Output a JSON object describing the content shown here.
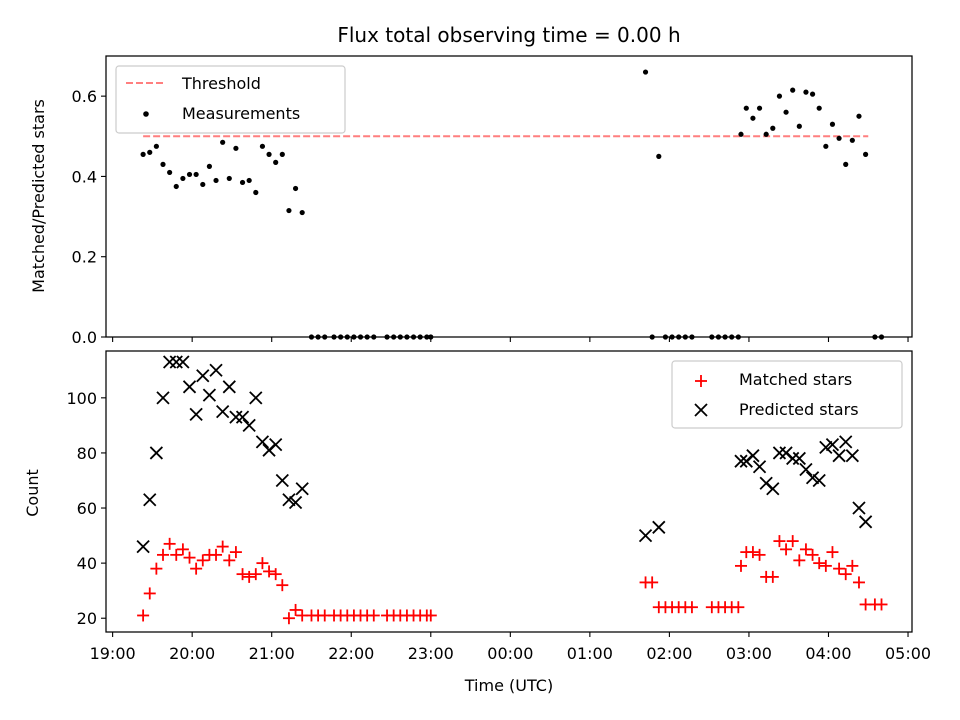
{
  "chart_data": [
    {
      "panel": "top",
      "type": "scatter",
      "title": "Flux total observing time = 0.00 h",
      "ylabel": "Matched/Predicted stars",
      "xlabel": "",
      "ylim": [
        0,
        0.7
      ],
      "yticks": [
        0.0,
        0.2,
        0.4,
        0.6
      ],
      "ytick_labels": [
        "0.0",
        "0.2",
        "0.4",
        "0.6"
      ],
      "legend_position": "top-left",
      "legend": [
        {
          "label": "Threshold",
          "style": "dashed-line",
          "color": "#ff7f7f"
        },
        {
          "label": "Measurements",
          "style": "dot",
          "color": "#000000"
        }
      ],
      "threshold": {
        "y": 0.5,
        "x_start": "19:23",
        "x_end": "04:30",
        "color": "#ff7f7f"
      },
      "series": [
        {
          "name": "Measurements",
          "color": "#000000",
          "points": [
            [
              "19:23",
              0.455
            ],
            [
              "19:28",
              0.46
            ],
            [
              "19:33",
              0.475
            ],
            [
              "19:38",
              0.43
            ],
            [
              "19:43",
              0.41
            ],
            [
              "19:48",
              0.375
            ],
            [
              "19:53",
              0.395
            ],
            [
              "19:58",
              0.405
            ],
            [
              "20:03",
              0.405
            ],
            [
              "20:08",
              0.38
            ],
            [
              "20:13",
              0.425
            ],
            [
              "20:18",
              0.39
            ],
            [
              "20:23",
              0.485
            ],
            [
              "20:28",
              0.395
            ],
            [
              "20:33",
              0.47
            ],
            [
              "20:38",
              0.385
            ],
            [
              "20:43",
              0.39
            ],
            [
              "20:48",
              0.36
            ],
            [
              "20:53",
              0.475
            ],
            [
              "20:58",
              0.455
            ],
            [
              "21:03",
              0.435
            ],
            [
              "21:08",
              0.455
            ],
            [
              "21:13",
              0.315
            ],
            [
              "21:18",
              0.37
            ],
            [
              "21:23",
              0.31
            ],
            [
              "21:30",
              0.0
            ],
            [
              "21:35",
              0.0
            ],
            [
              "21:40",
              0.0
            ],
            [
              "21:47",
              0.0
            ],
            [
              "21:52",
              0.0
            ],
            [
              "21:57",
              0.0
            ],
            [
              "22:02",
              0.0
            ],
            [
              "22:07",
              0.0
            ],
            [
              "22:12",
              0.0
            ],
            [
              "22:17",
              0.0
            ],
            [
              "22:27",
              0.0
            ],
            [
              "22:32",
              0.0
            ],
            [
              "22:37",
              0.0
            ],
            [
              "22:42",
              0.0
            ],
            [
              "22:47",
              0.0
            ],
            [
              "22:52",
              0.0
            ],
            [
              "22:57",
              0.0
            ],
            [
              "23:00",
              0.0
            ],
            [
              "01:42",
              0.66
            ],
            [
              "01:47",
              0.0
            ],
            [
              "01:52",
              0.45
            ],
            [
              "01:57",
              0.0
            ],
            [
              "02:02",
              0.0
            ],
            [
              "02:07",
              0.0
            ],
            [
              "02:12",
              0.0
            ],
            [
              "02:17",
              0.0
            ],
            [
              "02:32",
              0.0
            ],
            [
              "02:37",
              0.0
            ],
            [
              "02:42",
              0.0
            ],
            [
              "02:47",
              0.0
            ],
            [
              "02:52",
              0.0
            ],
            [
              "02:54",
              0.505
            ],
            [
              "02:58",
              0.57
            ],
            [
              "03:03",
              0.545
            ],
            [
              "03:08",
              0.57
            ],
            [
              "03:13",
              0.505
            ],
            [
              "03:18",
              0.52
            ],
            [
              "03:23",
              0.6
            ],
            [
              "03:28",
              0.56
            ],
            [
              "03:33",
              0.615
            ],
            [
              "03:38",
              0.525
            ],
            [
              "03:43",
              0.61
            ],
            [
              "03:48",
              0.605
            ],
            [
              "03:53",
              0.57
            ],
            [
              "03:58",
              0.475
            ],
            [
              "04:03",
              0.53
            ],
            [
              "04:08",
              0.495
            ],
            [
              "04:13",
              0.43
            ],
            [
              "04:18",
              0.49
            ],
            [
              "04:23",
              0.55
            ],
            [
              "04:28",
              0.455
            ],
            [
              "04:35",
              0.0
            ],
            [
              "04:40",
              0.0
            ]
          ]
        }
      ]
    },
    {
      "panel": "bottom",
      "type": "scatter",
      "title": "",
      "ylabel": "Count",
      "xlabel": "Time (UTC)",
      "xlim": [
        "18:55",
        "05:03"
      ],
      "xticks": [
        "19:00",
        "20:00",
        "21:00",
        "22:00",
        "23:00",
        "00:00",
        "01:00",
        "02:00",
        "03:00",
        "04:00",
        "05:00"
      ],
      "ylim": [
        15,
        117
      ],
      "yticks": [
        20,
        40,
        60,
        80,
        100
      ],
      "ytick_labels": [
        "20",
        "40",
        "60",
        "80",
        "100"
      ],
      "legend_position": "top-right",
      "legend": [
        {
          "label": "Matched stars",
          "style": "plus",
          "color": "#ff0000"
        },
        {
          "label": "Predicted stars",
          "style": "x",
          "color": "#000000"
        }
      ],
      "series": [
        {
          "name": "Matched stars",
          "marker": "plus",
          "color": "#ff0000",
          "points": [
            [
              "19:23",
              21
            ],
            [
              "19:28",
              29
            ],
            [
              "19:33",
              38
            ],
            [
              "19:38",
              43
            ],
            [
              "19:43",
              47
            ],
            [
              "19:48",
              43
            ],
            [
              "19:53",
              45
            ],
            [
              "19:58",
              42
            ],
            [
              "20:03",
              38
            ],
            [
              "20:08",
              41
            ],
            [
              "20:13",
              43
            ],
            [
              "20:18",
              43
            ],
            [
              "20:23",
              46
            ],
            [
              "20:28",
              41
            ],
            [
              "20:33",
              44
            ],
            [
              "20:38",
              36
            ],
            [
              "20:43",
              35
            ],
            [
              "20:48",
              36
            ],
            [
              "20:53",
              40
            ],
            [
              "20:58",
              37
            ],
            [
              "21:03",
              36
            ],
            [
              "21:08",
              32
            ],
            [
              "21:13",
              20
            ],
            [
              "21:18",
              23
            ],
            [
              "21:23",
              21
            ],
            [
              "21:30",
              21
            ],
            [
              "21:35",
              21
            ],
            [
              "21:40",
              21
            ],
            [
              "21:47",
              21
            ],
            [
              "21:52",
              21
            ],
            [
              "21:57",
              21
            ],
            [
              "22:02",
              21
            ],
            [
              "22:07",
              21
            ],
            [
              "22:12",
              21
            ],
            [
              "22:17",
              21
            ],
            [
              "22:27",
              21
            ],
            [
              "22:32",
              21
            ],
            [
              "22:37",
              21
            ],
            [
              "22:42",
              21
            ],
            [
              "22:47",
              21
            ],
            [
              "22:52",
              21
            ],
            [
              "22:57",
              21
            ],
            [
              "23:00",
              21
            ],
            [
              "01:42",
              33
            ],
            [
              "01:47",
              33
            ],
            [
              "01:52",
              24
            ],
            [
              "01:57",
              24
            ],
            [
              "02:02",
              24
            ],
            [
              "02:07",
              24
            ],
            [
              "02:12",
              24
            ],
            [
              "02:17",
              24
            ],
            [
              "02:32",
              24
            ],
            [
              "02:37",
              24
            ],
            [
              "02:42",
              24
            ],
            [
              "02:47",
              24
            ],
            [
              "02:52",
              24
            ],
            [
              "02:54",
              39
            ],
            [
              "02:58",
              44
            ],
            [
              "03:03",
              44
            ],
            [
              "03:08",
              43
            ],
            [
              "03:13",
              35
            ],
            [
              "03:18",
              35
            ],
            [
              "03:23",
              48
            ],
            [
              "03:28",
              45
            ],
            [
              "03:33",
              48
            ],
            [
              "03:38",
              41
            ],
            [
              "03:43",
              45
            ],
            [
              "03:48",
              43
            ],
            [
              "03:53",
              40
            ],
            [
              "03:58",
              39
            ],
            [
              "04:03",
              44
            ],
            [
              "04:08",
              38
            ],
            [
              "04:13",
              36
            ],
            [
              "04:18",
              39
            ],
            [
              "04:23",
              33
            ],
            [
              "04:28",
              25
            ],
            [
              "04:35",
              25
            ],
            [
              "04:40",
              25
            ]
          ]
        },
        {
          "name": "Predicted stars",
          "marker": "x",
          "color": "#000000",
          "points": [
            [
              "19:23",
              46
            ],
            [
              "19:28",
              63
            ],
            [
              "19:33",
              80
            ],
            [
              "19:38",
              100
            ],
            [
              "19:43",
              113
            ],
            [
              "19:48",
              113
            ],
            [
              "19:53",
              113
            ],
            [
              "19:58",
              104
            ],
            [
              "20:03",
              94
            ],
            [
              "20:08",
              108
            ],
            [
              "20:13",
              101
            ],
            [
              "20:18",
              110
            ],
            [
              "20:23",
              95
            ],
            [
              "20:28",
              104
            ],
            [
              "20:33",
              93
            ],
            [
              "20:38",
              93
            ],
            [
              "20:43",
              90
            ],
            [
              "20:48",
              100
            ],
            [
              "20:53",
              84
            ],
            [
              "20:58",
              81
            ],
            [
              "21:03",
              83
            ],
            [
              "21:08",
              70
            ],
            [
              "21:13",
              63
            ],
            [
              "21:18",
              62
            ],
            [
              "21:23",
              67
            ],
            [
              "01:42",
              50
            ],
            [
              "01:52",
              53
            ],
            [
              "02:54",
              77
            ],
            [
              "02:58",
              77
            ],
            [
              "03:03",
              79
            ],
            [
              "03:08",
              75
            ],
            [
              "03:13",
              69
            ],
            [
              "03:18",
              67
            ],
            [
              "03:23",
              80
            ],
            [
              "03:28",
              80
            ],
            [
              "03:33",
              78
            ],
            [
              "03:38",
              78
            ],
            [
              "03:43",
              74
            ],
            [
              "03:48",
              71
            ],
            [
              "03:53",
              70
            ],
            [
              "03:58",
              82
            ],
            [
              "04:03",
              83
            ],
            [
              "04:08",
              79
            ],
            [
              "04:13",
              84
            ],
            [
              "04:18",
              79
            ],
            [
              "04:23",
              60
            ],
            [
              "04:28",
              55
            ]
          ]
        }
      ]
    }
  ]
}
